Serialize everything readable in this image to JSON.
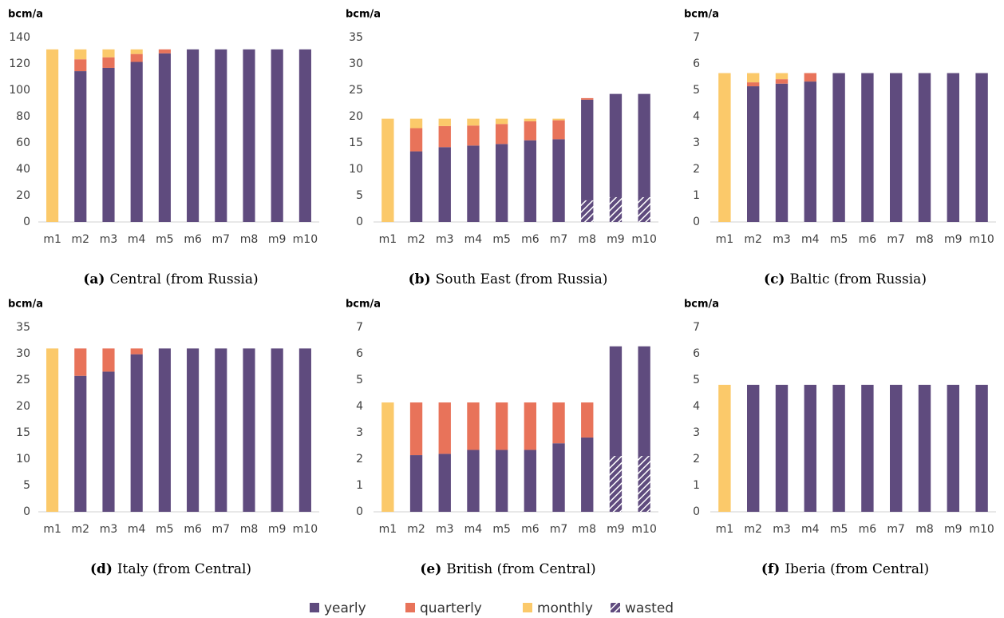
{
  "legend": [
    {
      "name": "yearly",
      "color": "#5f4b7e"
    },
    {
      "name": "quarterly",
      "color": "#e8735a"
    },
    {
      "name": "monthly",
      "color": "#fbc96a"
    },
    {
      "name": "wasted",
      "color": "#5f4b7e"
    }
  ],
  "chart_data": [
    {
      "type": "bar",
      "label": "(a)",
      "title": "Central (from Russia)",
      "ylabel": "bcm/a",
      "categories": [
        "m1",
        "m2",
        "m3",
        "m4",
        "m5",
        "m6",
        "m7",
        "m8",
        "m9",
        "m10"
      ],
      "ylim": [
        0,
        140
      ],
      "yticks": [
        0,
        20,
        40,
        60,
        80,
        100,
        120,
        140
      ],
      "series": [
        {
          "values": [
            0,
            114.5,
            117,
            121.5,
            128,
            131,
            131,
            131,
            131,
            131
          ]
        },
        {
          "values": [
            0,
            9,
            8,
            6,
            3,
            0,
            0,
            0,
            0,
            0
          ]
        },
        {
          "values": [
            131,
            7.5,
            6,
            3.5,
            0,
            0,
            0,
            0,
            0,
            0
          ]
        },
        {
          "values": [
            0,
            0,
            0,
            0,
            0,
            0,
            0,
            0,
            0,
            0
          ]
        }
      ]
    },
    {
      "type": "bar",
      "label": "(b)",
      "title": "South East (from Russia)",
      "ylabel": "bcm/a",
      "categories": [
        "m1",
        "m2",
        "m3",
        "m4",
        "m5",
        "m6",
        "m7",
        "m8",
        "m9",
        "m10"
      ],
      "ylim": [
        0,
        35
      ],
      "yticks": [
        0,
        5,
        10,
        15,
        20,
        25,
        30,
        35
      ],
      "series": [
        {
          "values": [
            0,
            13.4,
            14.2,
            14.5,
            14.8,
            15.5,
            15.7,
            19.1,
            19.6,
            19.6
          ]
        },
        {
          "values": [
            0,
            4.4,
            4,
            3.8,
            3.8,
            3.6,
            3.6,
            0.3,
            0,
            0
          ]
        },
        {
          "values": [
            19.6,
            1.8,
            1.4,
            1.3,
            1,
            0.5,
            0.3,
            0,
            0,
            0
          ]
        },
        {
          "values": [
            0,
            0,
            0,
            0,
            0,
            0,
            0,
            4.1,
            4.7,
            4.7
          ]
        }
      ]
    },
    {
      "type": "bar",
      "label": "(c)",
      "title": "Baltic (from Russia)",
      "ylabel": "bcm/a",
      "categories": [
        "m1",
        "m2",
        "m3",
        "m4",
        "m5",
        "m6",
        "m7",
        "m8",
        "m9",
        "m10"
      ],
      "ylim": [
        0,
        7
      ],
      "yticks": [
        0,
        1,
        2,
        3,
        4,
        5,
        6,
        7
      ],
      "series": [
        {
          "values": [
            0,
            5.15,
            5.25,
            5.33,
            5.65,
            5.65,
            5.65,
            5.65,
            5.65,
            5.65
          ]
        },
        {
          "values": [
            0,
            0.15,
            0.17,
            0.32,
            0,
            0,
            0,
            0,
            0,
            0
          ]
        },
        {
          "values": [
            5.65,
            0.35,
            0.23,
            0,
            0,
            0,
            0,
            0,
            0,
            0
          ]
        },
        {
          "values": [
            0,
            0,
            0,
            0,
            0,
            0,
            0,
            0,
            0,
            0
          ]
        }
      ]
    },
    {
      "type": "bar",
      "label": "(d)",
      "title": "Italy (from Central)",
      "ylabel": "bcm/a",
      "categories": [
        "m1",
        "m2",
        "m3",
        "m4",
        "m5",
        "m6",
        "m7",
        "m8",
        "m9",
        "m10"
      ],
      "ylim": [
        0,
        35
      ],
      "yticks": [
        0,
        5,
        10,
        15,
        20,
        25,
        30,
        35
      ],
      "series": [
        {
          "values": [
            0,
            25.8,
            26.6,
            29.9,
            31,
            31,
            31,
            31,
            31,
            31
          ]
        },
        {
          "values": [
            0,
            5.2,
            4.4,
            1.1,
            0,
            0,
            0,
            0,
            0,
            0
          ]
        },
        {
          "values": [
            31,
            0,
            0,
            0,
            0,
            0,
            0,
            0,
            0,
            0
          ]
        },
        {
          "values": [
            0,
            0,
            0,
            0,
            0,
            0,
            0,
            0,
            0,
            0
          ]
        }
      ]
    },
    {
      "type": "bar",
      "label": "(e)",
      "title": "British (from Central)",
      "ylabel": "bcm/a",
      "categories": [
        "m1",
        "m2",
        "m3",
        "m4",
        "m5",
        "m6",
        "m7",
        "m8",
        "m9",
        "m10"
      ],
      "ylim": [
        0,
        7
      ],
      "yticks": [
        0,
        1,
        2,
        3,
        4,
        5,
        6,
        7
      ],
      "series": [
        {
          "values": [
            0,
            2.15,
            2.2,
            2.35,
            2.35,
            2.35,
            2.6,
            2.82,
            4.16,
            4.16
          ]
        },
        {
          "values": [
            0,
            2,
            1.95,
            1.8,
            1.8,
            1.8,
            1.55,
            1.33,
            0,
            0
          ]
        },
        {
          "values": [
            4.15,
            0,
            0,
            0,
            0,
            0,
            0,
            0,
            0,
            0
          ]
        },
        {
          "values": [
            0,
            0,
            0,
            0,
            0,
            0,
            0,
            0,
            2.12,
            2.12
          ]
        }
      ]
    },
    {
      "type": "bar",
      "label": "(f)",
      "title": "Iberia (from Central)",
      "ylabel": "bcm/a",
      "categories": [
        "m1",
        "m2",
        "m3",
        "m4",
        "m5",
        "m6",
        "m7",
        "m8",
        "m9",
        "m10"
      ],
      "ylim": [
        0,
        7
      ],
      "yticks": [
        0,
        1,
        2,
        3,
        4,
        5,
        6,
        7
      ],
      "series": [
        {
          "values": [
            0,
            4.82,
            4.82,
            4.82,
            4.82,
            4.82,
            4.82,
            4.82,
            4.82,
            4.82
          ]
        },
        {
          "values": [
            0,
            0,
            0,
            0,
            0,
            0,
            0,
            0,
            0,
            0
          ]
        },
        {
          "values": [
            4.82,
            0,
            0,
            0,
            0,
            0,
            0,
            0,
            0,
            0
          ]
        },
        {
          "values": [
            0,
            0,
            0,
            0,
            0,
            0,
            0,
            0,
            0,
            0
          ]
        }
      ]
    }
  ]
}
